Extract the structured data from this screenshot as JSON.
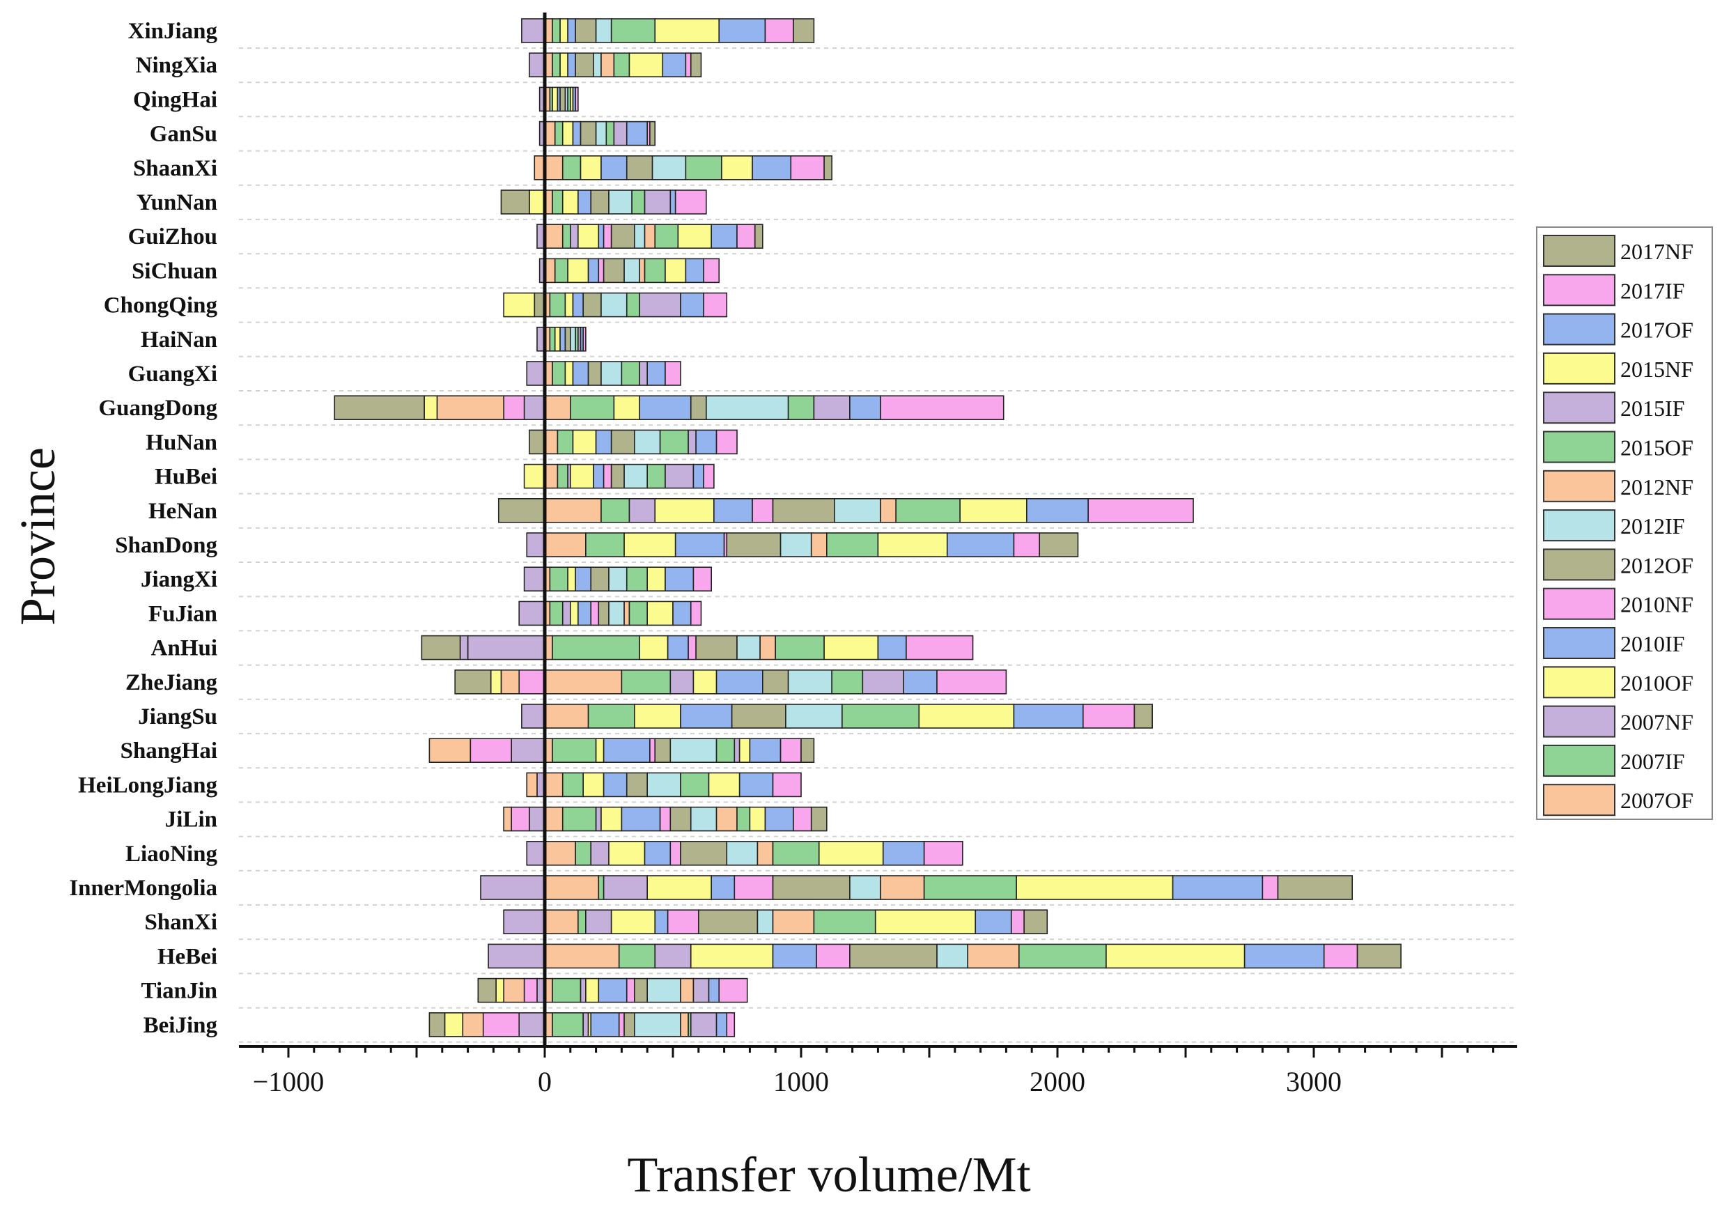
{
  "chart_data": {
    "type": "bar",
    "orientation": "horizontal",
    "stacked": true,
    "title": "",
    "xlabel": "Transfer volume/Mt",
    "ylabel": "Province",
    "xlim": [
      -1200,
      3800
    ],
    "xticks": [
      -1000,
      0,
      1000,
      2000,
      3000
    ],
    "xtick_labels": [
      "−1000",
      "0",
      "1000",
      "2000",
      "3000"
    ],
    "grid": "dashed horizontal",
    "legend_position": "right",
    "categories": [
      "BeiJing",
      "TianJin",
      "HeBei",
      "ShanXi",
      "InnerMongolia",
      "LiaoNing",
      "JiLin",
      "HeiLongJiang",
      "ShangHai",
      "JiangSu",
      "ZheJiang",
      "AnHui",
      "FuJian",
      "JiangXi",
      "ShanDong",
      "HeNan",
      "HuBei",
      "HuNan",
      "GuangDong",
      "GuangXi",
      "HaiNan",
      "ChongQing",
      "SiChuan",
      "GuiZhou",
      "YunNan",
      "ShaanXi",
      "GanSu",
      "QingHai",
      "NingXia",
      "XinJiang"
    ],
    "series_order_from_zero": [
      "2007OF",
      "2007IF",
      "2007NF",
      "2010OF",
      "2010IF",
      "2010NF",
      "2012OF",
      "2012IF",
      "2012NF",
      "2015OF",
      "2015IF",
      "2015NF",
      "2017OF",
      "2017IF",
      "2017NF"
    ],
    "series": [
      {
        "name": "2017NF",
        "color": "#b0b38c"
      },
      {
        "name": "2017IF",
        "color": "#f9a7ec"
      },
      {
        "name": "2017OF",
        "color": "#93b4ee"
      },
      {
        "name": "2015NF",
        "color": "#fbfb8f"
      },
      {
        "name": "2015IF",
        "color": "#c4b0da"
      },
      {
        "name": "2015OF",
        "color": "#8fd495"
      },
      {
        "name": "2012NF",
        "color": "#fbc59c"
      },
      {
        "name": "2012IF",
        "color": "#b6e3e8"
      },
      {
        "name": "2012OF",
        "color": "#b0b38c"
      },
      {
        "name": "2010NF",
        "color": "#f9a7ec"
      },
      {
        "name": "2010IF",
        "color": "#93b4ee"
      },
      {
        "name": "2010OF",
        "color": "#fbfb8f"
      },
      {
        "name": "2007NF",
        "color": "#c4b0da"
      },
      {
        "name": "2007IF",
        "color": "#8fd495"
      },
      {
        "name": "2007OF",
        "color": "#fbc59c"
      }
    ],
    "legend": [
      "2017NF",
      "2017IF",
      "2017OF",
      "2015NF",
      "2015IF",
      "2015OF",
      "2012NF",
      "2012IF",
      "2012OF",
      "2010NF",
      "2010IF",
      "2010OF",
      "2007NF",
      "2007IF",
      "2007OF"
    ],
    "positive_values": {
      "BeiJing": [
        30,
        120,
        20,
        10,
        110,
        20,
        40,
        180,
        30,
        10,
        100,
        0,
        40,
        30,
        0
      ],
      "TianJin": [
        30,
        110,
        20,
        50,
        110,
        30,
        50,
        130,
        50,
        0,
        60,
        0,
        40,
        110,
        0
      ],
      "HeBei": [
        290,
        140,
        140,
        320,
        170,
        130,
        340,
        120,
        200,
        340,
        0,
        540,
        310,
        130,
        170
      ],
      "ShanXi": [
        130,
        30,
        100,
        170,
        50,
        120,
        230,
        60,
        160,
        240,
        0,
        390,
        140,
        50,
        90
      ],
      "InnerMongolia": [
        210,
        20,
        170,
        250,
        90,
        150,
        300,
        120,
        170,
        360,
        0,
        610,
        350,
        60,
        290
      ],
      "LiaoNing": [
        120,
        60,
        70,
        140,
        100,
        40,
        180,
        120,
        60,
        180,
        0,
        250,
        160,
        150,
        0
      ],
      "JiLin": [
        70,
        130,
        20,
        80,
        150,
        40,
        80,
        100,
        80,
        50,
        0,
        60,
        110,
        70,
        60
      ],
      "HeiLongJiang": [
        70,
        80,
        0,
        80,
        90,
        0,
        80,
        130,
        0,
        110,
        0,
        120,
        130,
        110,
        0
      ],
      "ShangHai": [
        30,
        170,
        0,
        30,
        180,
        20,
        60,
        180,
        0,
        70,
        20,
        40,
        120,
        80,
        50
      ],
      "JiangSu": [
        170,
        180,
        0,
        180,
        200,
        0,
        210,
        220,
        0,
        300,
        0,
        370,
        270,
        200,
        70
      ],
      "ZheJiang": [
        300,
        190,
        90,
        90,
        180,
        0,
        100,
        170,
        0,
        120,
        160,
        0,
        130,
        270,
        0
      ],
      "AnHui": [
        30,
        340,
        0,
        110,
        80,
        30,
        160,
        90,
        60,
        190,
        0,
        210,
        110,
        260,
        0
      ],
      "FuJian": [
        20,
        50,
        30,
        30,
        50,
        30,
        40,
        60,
        20,
        70,
        0,
        100,
        70,
        40,
        0
      ],
      "JiangXi": [
        20,
        70,
        0,
        30,
        60,
        0,
        70,
        70,
        0,
        80,
        0,
        70,
        110,
        70,
        0
      ],
      "ShanDong": [
        160,
        150,
        0,
        200,
        190,
        10,
        210,
        120,
        60,
        200,
        0,
        270,
        260,
        100,
        150
      ],
      "HeNan": [
        220,
        110,
        100,
        230,
        150,
        80,
        240,
        180,
        60,
        250,
        0,
        260,
        240,
        410,
        0
      ],
      "HuBei": [
        50,
        40,
        10,
        90,
        40,
        30,
        50,
        90,
        0,
        70,
        110,
        0,
        40,
        40,
        0
      ],
      "HuNan": [
        50,
        60,
        0,
        90,
        60,
        0,
        90,
        100,
        0,
        110,
        30,
        0,
        80,
        80,
        0
      ],
      "GuangDong": [
        100,
        170,
        0,
        100,
        200,
        0,
        60,
        320,
        0,
        100,
        140,
        0,
        120,
        480,
        0
      ],
      "GuangXi": [
        30,
        50,
        0,
        30,
        60,
        0,
        50,
        80,
        0,
        70,
        30,
        0,
        70,
        60,
        0
      ],
      "HaiNan": [
        20,
        20,
        0,
        20,
        20,
        0,
        20,
        20,
        0,
        10,
        10,
        0,
        10,
        10,
        0
      ],
      "ChongQing": [
        20,
        60,
        0,
        30,
        40,
        0,
        70,
        100,
        0,
        50,
        160,
        0,
        90,
        90,
        0
      ],
      "SiChuan": [
        40,
        50,
        0,
        80,
        40,
        20,
        80,
        60,
        20,
        80,
        0,
        80,
        70,
        60,
        0
      ],
      "GuiZhou": [
        70,
        30,
        30,
        80,
        20,
        30,
        90,
        40,
        40,
        90,
        0,
        130,
        100,
        70,
        30
      ],
      "YunNan": [
        30,
        40,
        0,
        60,
        50,
        0,
        70,
        90,
        0,
        50,
        100,
        0,
        20,
        120,
        0
      ],
      "ShaanXi": [
        70,
        70,
        0,
        80,
        100,
        0,
        100,
        130,
        0,
        140,
        0,
        120,
        150,
        130,
        30
      ],
      "GanSu": [
        40,
        30,
        0,
        40,
        30,
        0,
        60,
        40,
        0,
        30,
        50,
        0,
        80,
        10,
        20
      ],
      "QingHai": [
        20,
        10,
        0,
        20,
        10,
        0,
        20,
        10,
        0,
        10,
        0,
        10,
        10,
        10,
        0
      ],
      "NingXia": [
        30,
        30,
        0,
        30,
        30,
        0,
        70,
        30,
        50,
        60,
        0,
        130,
        90,
        20,
        40
      ],
      "XinJiang": [
        30,
        30,
        0,
        30,
        30,
        0,
        80,
        60,
        0,
        170,
        0,
        250,
        180,
        110,
        80
      ]
    },
    "negative_values": {
      "BeiJing": [
        -100,
        -140,
        -80,
        -70,
        -60
      ],
      "TianJin": [
        -30,
        -50,
        -80,
        -30,
        -70
      ],
      "HeBei": [
        -220
      ],
      "ShanXi": [
        -160
      ],
      "InnerMongolia": [
        -250
      ],
      "LiaoNing": [
        -70
      ],
      "JiLin": [
        -60,
        -70,
        -30
      ],
      "HeiLongJiang": [
        -30,
        -40
      ],
      "ShangHai": [
        -130,
        -160,
        -160
      ],
      "JiangSu": [
        -90
      ],
      "ZheJiang": [
        -100,
        -70,
        -40,
        -140
      ],
      "AnHui": [
        -300,
        -30,
        -150
      ],
      "FuJian": [
        -100
      ],
      "JiangXi": [
        -80
      ],
      "ShanDong": [
        -70
      ],
      "HeNan": [
        -180
      ],
      "HuBei": [
        -80
      ],
      "HuNan": [
        -60
      ],
      "GuangDong": [
        -80,
        -80,
        -260,
        -50,
        -350
      ],
      "GuangXi": [
        -70
      ],
      "HaiNan": [
        -30
      ],
      "ChongQing": [
        -40,
        -120
      ],
      "SiChuan": [
        -20
      ],
      "GuiZhou": [
        -30
      ],
      "YunNan": [
        -60,
        -110
      ],
      "ShaanXi": [
        -40
      ],
      "GanSu": [
        -20
      ],
      "QingHai": [
        -20
      ],
      "NingXia": [
        -60
      ],
      "XinJiang": [
        -90
      ]
    },
    "negative_colors": {
      "BeiJing": [
        "#c4b0da",
        "#f9a7ec",
        "#fbc59c",
        "#fbfb8f",
        "#b0b38c"
      ],
      "TianJin": [
        "#c4b0da",
        "#f9a7ec",
        "#fbc59c",
        "#fbfb8f",
        "#b0b38c"
      ],
      "HeBei": [
        "#c4b0da"
      ],
      "ShanXi": [
        "#c4b0da"
      ],
      "InnerMongolia": [
        "#c4b0da"
      ],
      "LiaoNing": [
        "#c4b0da"
      ],
      "JiLin": [
        "#c4b0da",
        "#f9a7ec",
        "#fbc59c"
      ],
      "HeiLongJiang": [
        "#c4b0da",
        "#fbc59c"
      ],
      "ShangHai": [
        "#c4b0da",
        "#f9a7ec",
        "#fbc59c"
      ],
      "JiangSu": [
        "#c4b0da"
      ],
      "ZheJiang": [
        "#f9a7ec",
        "#fbc59c",
        "#fbfb8f",
        "#b0b38c"
      ],
      "AnHui": [
        "#c4b0da",
        "#c4b0da",
        "#b0b38c"
      ],
      "FuJian": [
        "#c4b0da"
      ],
      "JiangXi": [
        "#c4b0da"
      ],
      "ShanDong": [
        "#c4b0da"
      ],
      "HeNan": [
        "#b0b38c"
      ],
      "HuBei": [
        "#fbfb8f"
      ],
      "HuNan": [
        "#b0b38c"
      ],
      "GuangDong": [
        "#c4b0da",
        "#f9a7ec",
        "#fbc59c",
        "#fbfb8f",
        "#b0b38c"
      ],
      "GuangXi": [
        "#c4b0da"
      ],
      "HaiNan": [
        "#c4b0da"
      ],
      "ChongQing": [
        "#b0b38c",
        "#fbfb8f"
      ],
      "SiChuan": [
        "#c4b0da"
      ],
      "GuiZhou": [
        "#c4b0da"
      ],
      "YunNan": [
        "#fbfb8f",
        "#b0b38c"
      ],
      "ShaanXi": [
        "#fbc59c"
      ],
      "GanSu": [
        "#c4b0da"
      ],
      "QingHai": [
        "#c4b0da"
      ],
      "NingXia": [
        "#c4b0da"
      ],
      "XinJiang": [
        "#c4b0da"
      ]
    }
  }
}
